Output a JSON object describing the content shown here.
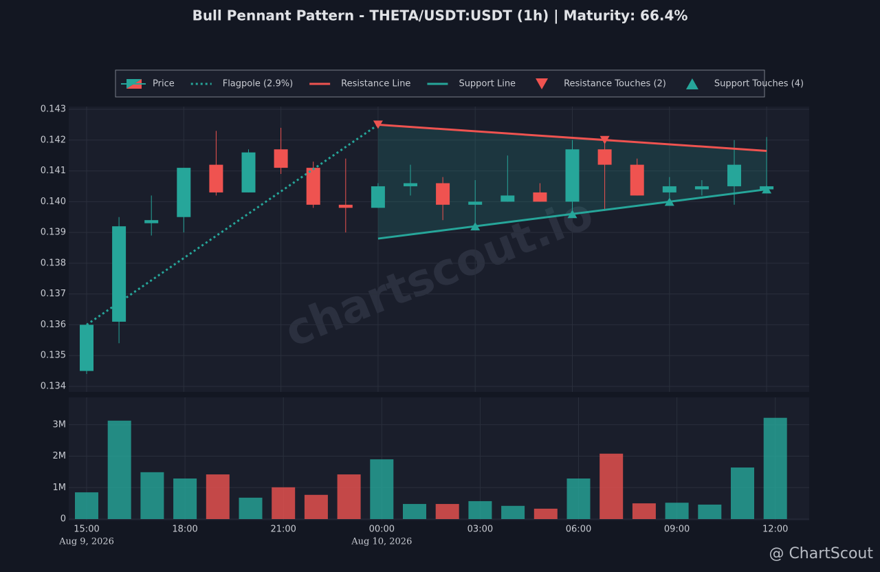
{
  "chart_data": [
    {
      "type": "candlestick",
      "title": "Bull Pennant Pattern - THETA/USDT:USDT (1h) | Maturity: 66.4%",
      "name": "Price",
      "up_color": "#26a69a",
      "down_color": "#ef5350",
      "open": [
        0.1345,
        0.1361,
        0.1393,
        0.1395,
        0.1412,
        0.1403,
        0.1417,
        0.1411,
        0.1399,
        0.1398,
        0.1405,
        0.1406,
        0.1399,
        0.14,
        0.1403,
        0.14,
        0.1417,
        0.1412,
        0.1403,
        0.1404,
        0.1405,
        0.1404
      ],
      "high": [
        0.136,
        0.1395,
        0.1402,
        0.1411,
        0.1423,
        0.1417,
        0.1424,
        0.1413,
        0.1414,
        0.1406,
        0.1412,
        0.1408,
        0.1407,
        0.1415,
        0.1406,
        0.142,
        0.142,
        0.1414,
        0.1408,
        0.1407,
        0.142,
        0.1421
      ],
      "low": [
        0.1344,
        0.1354,
        0.1389,
        0.139,
        0.1402,
        0.1403,
        0.1409,
        0.1398,
        0.139,
        0.1398,
        0.1402,
        0.1394,
        0.1392,
        0.14,
        0.14,
        0.1396,
        0.1397,
        0.1402,
        0.14,
        0.1402,
        0.1399,
        0.1404
      ],
      "close": [
        0.136,
        0.1392,
        0.1394,
        0.1411,
        0.1403,
        0.1416,
        0.1411,
        0.1399,
        0.1398,
        0.1405,
        0.1406,
        0.1399,
        0.14,
        0.1402,
        0.14,
        0.1417,
        0.1412,
        0.1402,
        0.1405,
        0.1405,
        0.1412,
        0.1405
      ],
      "ylim": [
        0.13382,
        0.14309
      ],
      "yticks": [
        0.134,
        0.135,
        0.136,
        0.137,
        0.138,
        0.139,
        {
          "value": 0.14,
          "label": "0.140"
        },
        0.141,
        0.142,
        0.143
      ],
      "grid": true,
      "legend": "top",
      "lines": [
        {
          "name": "Flagpole (2.9%)",
          "color": "#26a69a",
          "style": "dotted",
          "x": [
            0,
            9
          ],
          "values": [
            0.136,
            0.1425
          ]
        },
        {
          "name": "Resistance Line",
          "color": "#ef5350",
          "style": "solid",
          "x": [
            9,
            21
          ],
          "values": [
            0.1425,
            0.14165
          ]
        },
        {
          "name": "Support Line",
          "color": "#26a69a",
          "style": "solid",
          "x": [
            9,
            21
          ],
          "values": [
            0.1388,
            0.1404
          ]
        }
      ],
      "markers": [
        {
          "name": "Resistance Touches (2)",
          "color": "#ef5350",
          "shape": "down",
          "x": [
            9,
            16
          ],
          "values": [
            0.1425,
            0.142
          ]
        },
        {
          "name": "Support Touches (4)",
          "color": "#26a69a",
          "shape": "up",
          "x": [
            12,
            15,
            18,
            21
          ],
          "values": [
            0.1392,
            0.1396,
            0.14,
            0.1404
          ]
        }
      ]
    },
    {
      "type": "bar",
      "categories": [
        "15:00",
        null,
        null,
        "18:00",
        null,
        null,
        "21:00",
        null,
        null,
        "00:00",
        null,
        null,
        "03:00",
        null,
        null,
        "06:00",
        null,
        null,
        "09:00",
        null,
        null,
        "12:00"
      ],
      "category_dates": [
        "Aug 9, 2026",
        null,
        null,
        null,
        null,
        null,
        null,
        null,
        null,
        "Aug 10, 2026",
        null,
        null,
        null,
        null,
        null,
        null,
        null,
        null,
        null,
        null,
        null,
        null
      ],
      "values": [
        850000,
        3130000,
        1490000,
        1290000,
        1420000,
        680000,
        1010000,
        770000,
        1420000,
        1900000,
        480000,
        480000,
        570000,
        420000,
        330000,
        1290000,
        2080000,
        500000,
        520000,
        460000,
        1640000,
        3220000
      ],
      "ylim": [
        0,
        3870000
      ],
      "yticks": [
        0,
        {
          "value": 1000000,
          "label": "1M"
        },
        {
          "value": 2000000,
          "label": "2M"
        },
        {
          "value": 3000000,
          "label": "3M"
        }
      ],
      "grid": true
    }
  ],
  "watermark": "chartscout.io",
  "footer": "@ ChartScout"
}
